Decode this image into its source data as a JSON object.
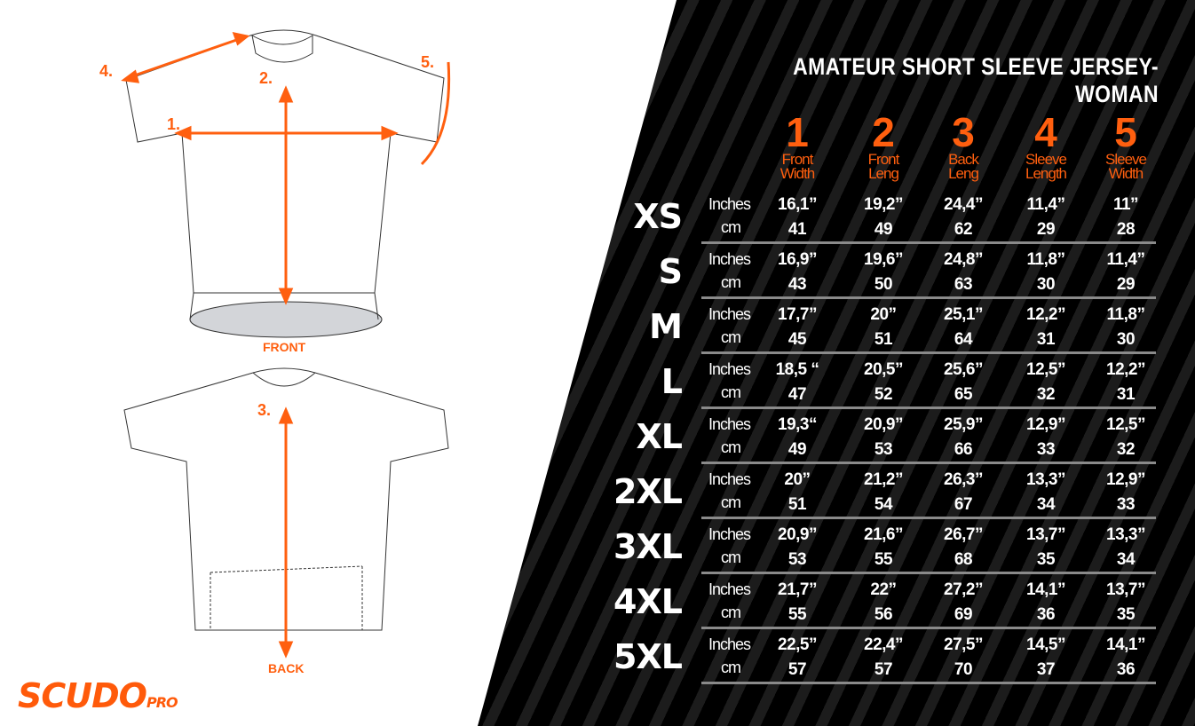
{
  "title": "AMATEUR SHORT SLEEVE JERSEY-WOMAN",
  "columns": [
    {
      "num": "1",
      "l1": "Front",
      "l2": "Width"
    },
    {
      "num": "2",
      "l1": "Front",
      "l2": "Leng"
    },
    {
      "num": "3",
      "l1": "Back",
      "l2": "Leng"
    },
    {
      "num": "4",
      "l1": "Sleeve",
      "l2": "Length"
    },
    {
      "num": "5",
      "l1": "Sleeve",
      "l2": "Width"
    }
  ],
  "units": {
    "inches": "Inches",
    "cm": "cm"
  },
  "rows": [
    {
      "size": "XS",
      "inches": [
        "16,1”",
        "19,2”",
        "24,4”",
        "11,4”",
        "11”"
      ],
      "cm": [
        "41",
        "49",
        "62",
        "29",
        "28"
      ]
    },
    {
      "size": "S",
      "inches": [
        "16,9”",
        "19,6”",
        "24,8”",
        "11,8”",
        "11,4”"
      ],
      "cm": [
        "43",
        "50",
        "63",
        "30",
        "29"
      ]
    },
    {
      "size": "M",
      "inches": [
        "17,7”",
        "20”",
        "25,1”",
        "12,2”",
        "11,8”"
      ],
      "cm": [
        "45",
        "51",
        "64",
        "31",
        "30"
      ]
    },
    {
      "size": "L",
      "inches": [
        "18,5 “",
        "20,5”",
        "25,6”",
        "12,5”",
        "12,2”"
      ],
      "cm": [
        "47",
        "52",
        "65",
        "32",
        "31"
      ]
    },
    {
      "size": "XL",
      "inches": [
        "19,3“",
        "20,9”",
        "25,9”",
        "12,9”",
        "12,5”"
      ],
      "cm": [
        "49",
        "53",
        "66",
        "33",
        "32"
      ]
    },
    {
      "size": "2XL",
      "inches": [
        "20”",
        "21,2”",
        "26,3”",
        "13,3”",
        "12,9”"
      ],
      "cm": [
        "51",
        "54",
        "67",
        "34",
        "33"
      ]
    },
    {
      "size": "3XL",
      "inches": [
        "20,9”",
        "21,6”",
        "26,7”",
        "13,7”",
        "13,3”"
      ],
      "cm": [
        "53",
        "55",
        "68",
        "35",
        "34"
      ]
    },
    {
      "size": "4XL",
      "inches": [
        "21,7”",
        "22”",
        "27,2”",
        "14,1”",
        "13,7”"
      ],
      "cm": [
        "55",
        "56",
        "69",
        "36",
        "35"
      ]
    },
    {
      "size": "5XL",
      "inches": [
        "22,5”",
        "22,4”",
        "27,5”",
        "14,5”",
        "14,1”"
      ],
      "cm": [
        "57",
        "57",
        "70",
        "37",
        "36"
      ]
    }
  ],
  "diagram": {
    "front": "FRONT",
    "back": "BACK",
    "m1": "1.",
    "m2": "2.",
    "m3": "3.",
    "m4": "4.",
    "m5": "5."
  },
  "logo": {
    "main": "SCUDO",
    "sub": "PRO"
  },
  "colors": {
    "accent": "#ff5f0f",
    "background": "#000000"
  }
}
